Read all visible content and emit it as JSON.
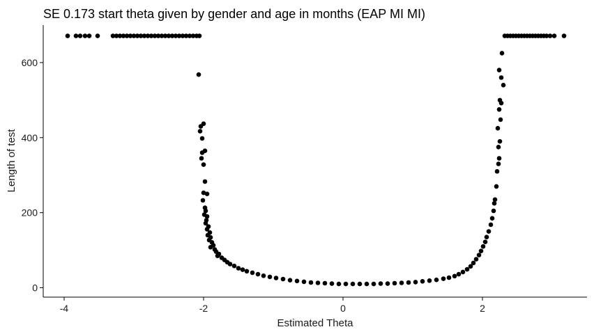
{
  "chart_data": {
    "type": "scatter",
    "title": "SE 0.173 start theta given by gender and age in months (EAP MI MI)",
    "xlabel": "Estimated Theta",
    "ylabel": "Length of test",
    "xlim": [
      -4.3,
      3.5
    ],
    "ylim": [
      -25,
      700
    ],
    "x_ticks": [
      {
        "value": -4,
        "label": "-4"
      },
      {
        "value": -2,
        "label": "-2"
      },
      {
        "value": 0,
        "label": "0"
      },
      {
        "value": 2,
        "label": "2"
      }
    ],
    "y_ticks": [
      {
        "value": 0,
        "label": "0"
      },
      {
        "value": 200,
        "label": "200"
      },
      {
        "value": 400,
        "label": "400"
      },
      {
        "value": 600,
        "label": "600"
      }
    ],
    "grid": false,
    "legend": "none",
    "point_color": "#000000",
    "series": [
      {
        "points": [
          [
            -3.95,
            671
          ],
          [
            -3.83,
            671
          ],
          [
            -3.77,
            671
          ],
          [
            -3.7,
            671
          ],
          [
            -3.64,
            671
          ],
          [
            -3.52,
            671
          ],
          [
            -3.3,
            671
          ],
          [
            -3.25,
            671
          ],
          [
            -3.2,
            671
          ],
          [
            -3.15,
            671
          ],
          [
            -3.1,
            671
          ],
          [
            -3.05,
            671
          ],
          [
            -3.0,
            671
          ],
          [
            -2.95,
            671
          ],
          [
            -2.9,
            671
          ],
          [
            -2.85,
            671
          ],
          [
            -2.8,
            671
          ],
          [
            -2.75,
            671
          ],
          [
            -2.7,
            671
          ],
          [
            -2.65,
            671
          ],
          [
            -2.6,
            671
          ],
          [
            -2.55,
            671
          ],
          [
            -2.5,
            671
          ],
          [
            -2.45,
            671
          ],
          [
            -2.4,
            671
          ],
          [
            -2.35,
            671
          ],
          [
            -2.3,
            671
          ],
          [
            -2.25,
            671
          ],
          [
            -2.2,
            671
          ],
          [
            -2.15,
            671
          ],
          [
            -2.1,
            671
          ],
          [
            -2.06,
            671
          ],
          [
            -2.07,
            568
          ],
          [
            -2.04,
            430
          ],
          [
            -2.0,
            437
          ],
          [
            -2.05,
            417
          ],
          [
            -2.02,
            398
          ],
          [
            -2.02,
            360
          ],
          [
            -1.98,
            365
          ],
          [
            -2.03,
            345
          ],
          [
            -2.0,
            328
          ],
          [
            -1.98,
            283
          ],
          [
            -2.0,
            253
          ],
          [
            -1.95,
            250
          ],
          [
            -2.01,
            233
          ],
          [
            -1.98,
            213
          ],
          [
            -1.97,
            205
          ],
          [
            -1.99,
            195
          ],
          [
            -1.95,
            190
          ],
          [
            -1.96,
            180
          ],
          [
            -1.97,
            172
          ],
          [
            -1.93,
            163
          ],
          [
            -1.95,
            156
          ],
          [
            -1.91,
            147
          ],
          [
            -1.94,
            140
          ],
          [
            -1.9,
            134
          ],
          [
            -1.92,
            127
          ],
          [
            -1.88,
            121
          ],
          [
            -1.86,
            113
          ],
          [
            -1.9,
            108
          ],
          [
            -1.84,
            102
          ],
          [
            -1.82,
            96
          ],
          [
            -1.78,
            90
          ],
          [
            -1.8,
            85
          ],
          [
            -1.74,
            80
          ],
          [
            -1.7,
            74
          ],
          [
            -1.66,
            68
          ],
          [
            -1.62,
            63
          ],
          [
            -1.56,
            58
          ],
          [
            -1.5,
            52
          ],
          [
            -1.44,
            48
          ],
          [
            -1.38,
            44
          ],
          [
            -1.3,
            40
          ],
          [
            -1.22,
            36
          ],
          [
            -1.14,
            32
          ],
          [
            -1.05,
            29
          ],
          [
            -0.96,
            26
          ],
          [
            -0.86,
            23
          ],
          [
            -0.76,
            20
          ],
          [
            -0.66,
            18
          ],
          [
            -0.56,
            16
          ],
          [
            -0.46,
            14
          ],
          [
            -0.36,
            13
          ],
          [
            -0.26,
            12
          ],
          [
            -0.16,
            11
          ],
          [
            -0.06,
            10
          ],
          [
            0.04,
            10
          ],
          [
            0.14,
            10
          ],
          [
            0.24,
            10
          ],
          [
            0.34,
            10
          ],
          [
            0.44,
            10
          ],
          [
            0.54,
            11
          ],
          [
            0.64,
            11
          ],
          [
            0.74,
            12
          ],
          [
            0.84,
            13
          ],
          [
            0.94,
            14
          ],
          [
            1.04,
            15
          ],
          [
            1.14,
            17
          ],
          [
            1.24,
            19
          ],
          [
            1.34,
            21
          ],
          [
            1.44,
            24
          ],
          [
            1.52,
            27
          ],
          [
            1.6,
            31
          ],
          [
            1.66,
            36
          ],
          [
            1.72,
            42
          ],
          [
            1.78,
            49
          ],
          [
            1.83,
            57
          ],
          [
            1.87,
            66
          ],
          [
            1.91,
            76
          ],
          [
            1.95,
            87
          ],
          [
            1.98,
            98
          ],
          [
            2.01,
            110
          ],
          [
            2.04,
            122
          ],
          [
            2.06,
            135
          ],
          [
            2.09,
            150
          ],
          [
            2.12,
            168
          ],
          [
            2.14,
            185
          ],
          [
            2.16,
            205
          ],
          [
            2.17,
            225
          ],
          [
            2.18,
            235
          ],
          [
            2.2,
            270
          ],
          [
            2.21,
            310
          ],
          [
            2.23,
            330
          ],
          [
            2.24,
            345
          ],
          [
            2.23,
            375
          ],
          [
            2.25,
            390
          ],
          [
            2.22,
            425
          ],
          [
            2.26,
            448
          ],
          [
            2.24,
            475
          ],
          [
            2.27,
            492
          ],
          [
            2.25,
            500
          ],
          [
            2.3,
            540
          ],
          [
            2.24,
            580
          ],
          [
            2.27,
            560
          ],
          [
            2.28,
            625
          ],
          [
            2.32,
            671
          ],
          [
            2.36,
            671
          ],
          [
            2.4,
            671
          ],
          [
            2.44,
            671
          ],
          [
            2.48,
            671
          ],
          [
            2.52,
            671
          ],
          [
            2.56,
            671
          ],
          [
            2.6,
            671
          ],
          [
            2.64,
            671
          ],
          [
            2.68,
            671
          ],
          [
            2.72,
            671
          ],
          [
            2.76,
            671
          ],
          [
            2.8,
            671
          ],
          [
            2.84,
            671
          ],
          [
            2.88,
            671
          ],
          [
            2.92,
            671
          ],
          [
            2.97,
            671
          ],
          [
            3.03,
            671
          ],
          [
            3.17,
            671
          ]
        ]
      }
    ]
  }
}
